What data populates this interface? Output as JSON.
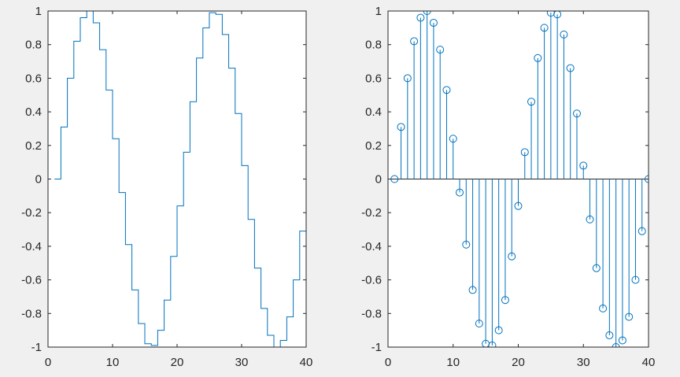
{
  "colors": {
    "series": "#0072bd",
    "axes": "#262626",
    "plot_background": "#ffffff",
    "figure_background": "#f0f0f0"
  },
  "chart_data": [
    {
      "type": "line",
      "style": "stairs",
      "title": "",
      "xlabel": "",
      "ylabel": "",
      "xlim": [
        0,
        40
      ],
      "ylim": [
        -1,
        1
      ],
      "grid": false,
      "xticks": [
        "0",
        "10",
        "20",
        "30",
        "40"
      ],
      "yticks": [
        "-1",
        "-0.8",
        "-0.6",
        "-0.4",
        "-0.2",
        "0",
        "0.2",
        "0.4",
        "0.6",
        "0.8",
        "1"
      ],
      "series": [
        {
          "x": [
            1,
            2,
            3,
            4,
            5,
            6,
            7,
            8,
            9,
            10,
            11,
            12,
            13,
            14,
            15,
            16,
            17,
            18,
            19,
            20,
            21,
            22,
            23,
            24,
            25,
            26,
            27,
            28,
            29,
            30,
            31,
            32,
            33,
            34,
            35,
            36,
            37,
            38,
            39,
            40
          ],
          "values": [
            0,
            0.31,
            0.6,
            0.82,
            0.96,
            1,
            0.93,
            0.77,
            0.53,
            0.24,
            -0.08,
            -0.39,
            -0.66,
            -0.86,
            -0.98,
            -0.99,
            -0.9,
            -0.72,
            -0.46,
            -0.16,
            0.16,
            0.46,
            0.72,
            0.9,
            0.99,
            0.98,
            0.86,
            0.66,
            0.39,
            0.08,
            -0.24,
            -0.53,
            -0.77,
            -0.93,
            -1,
            -0.96,
            -0.82,
            -0.6,
            -0.31,
            0
          ]
        }
      ]
    },
    {
      "type": "scatter",
      "style": "stem",
      "title": "",
      "xlabel": "",
      "ylabel": "",
      "xlim": [
        0,
        40
      ],
      "ylim": [
        -1,
        1
      ],
      "grid": false,
      "xticks": [
        "0",
        "10",
        "20",
        "30",
        "40"
      ],
      "yticks": [
        "-1",
        "-0.8",
        "-0.6",
        "-0.4",
        "-0.2",
        "0",
        "0.2",
        "0.4",
        "0.6",
        "0.8",
        "1"
      ],
      "series": [
        {
          "x": [
            1,
            2,
            3,
            4,
            5,
            6,
            7,
            8,
            9,
            10,
            11,
            12,
            13,
            14,
            15,
            16,
            17,
            18,
            19,
            20,
            21,
            22,
            23,
            24,
            25,
            26,
            27,
            28,
            29,
            30,
            31,
            32,
            33,
            34,
            35,
            36,
            37,
            38,
            39,
            40
          ],
          "values": [
            0,
            0.31,
            0.6,
            0.82,
            0.96,
            1,
            0.93,
            0.77,
            0.53,
            0.24,
            -0.08,
            -0.39,
            -0.66,
            -0.86,
            -0.98,
            -0.99,
            -0.9,
            -0.72,
            -0.46,
            -0.16,
            0.16,
            0.46,
            0.72,
            0.9,
            0.99,
            0.98,
            0.86,
            0.66,
            0.39,
            0.08,
            -0.24,
            -0.53,
            -0.77,
            -0.93,
            -1,
            -0.96,
            -0.82,
            -0.6,
            -0.31,
            0
          ]
        }
      ]
    }
  ]
}
